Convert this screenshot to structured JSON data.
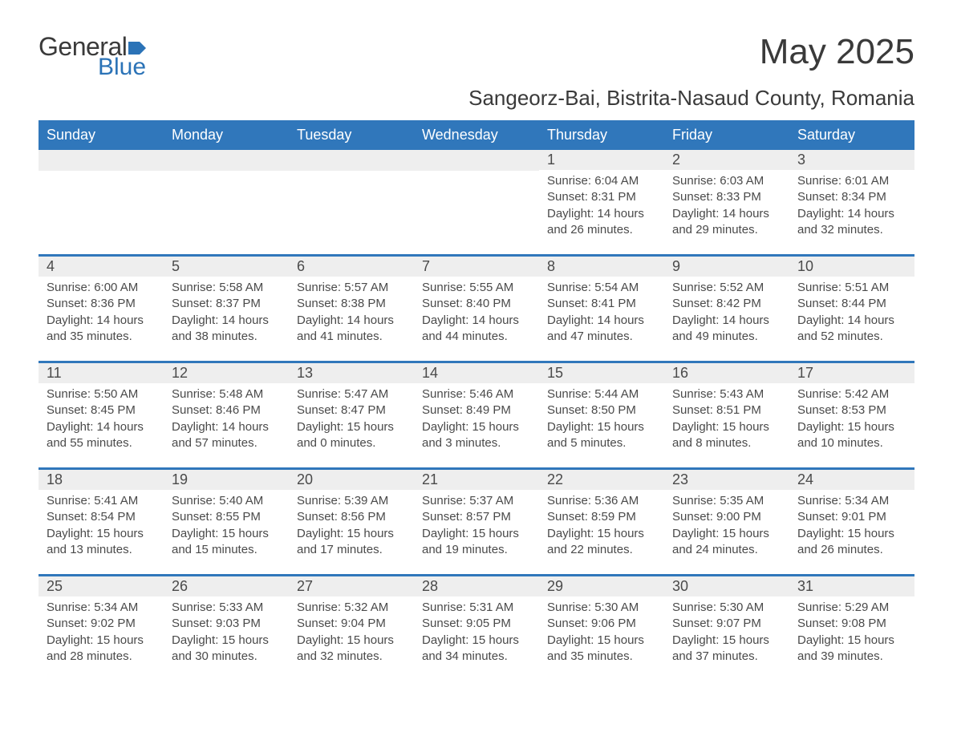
{
  "logo": {
    "text_general": "General",
    "text_blue": "Blue"
  },
  "title": "May 2025",
  "location": "Sangeorz-Bai, Bistrita-Nasaud County, Romania",
  "colors": {
    "header_bg": "#3077bb",
    "header_text": "#ffffff",
    "week_border": "#3077bb",
    "daynum_bg": "#eeeeee",
    "body_text": "#4a4a4a",
    "logo_blue": "#2b73b7",
    "background": "#ffffff"
  },
  "typography": {
    "title_fontsize": 44,
    "location_fontsize": 26,
    "header_fontsize": 18,
    "daynum_fontsize": 18,
    "cell_fontsize": 15
  },
  "day_names": [
    "Sunday",
    "Monday",
    "Tuesday",
    "Wednesday",
    "Thursday",
    "Friday",
    "Saturday"
  ],
  "weeks": [
    [
      null,
      null,
      null,
      null,
      {
        "n": "1",
        "sr": "Sunrise: 6:04 AM",
        "ss": "Sunset: 8:31 PM",
        "d1": "Daylight: 14 hours",
        "d2": "and 26 minutes."
      },
      {
        "n": "2",
        "sr": "Sunrise: 6:03 AM",
        "ss": "Sunset: 8:33 PM",
        "d1": "Daylight: 14 hours",
        "d2": "and 29 minutes."
      },
      {
        "n": "3",
        "sr": "Sunrise: 6:01 AM",
        "ss": "Sunset: 8:34 PM",
        "d1": "Daylight: 14 hours",
        "d2": "and 32 minutes."
      }
    ],
    [
      {
        "n": "4",
        "sr": "Sunrise: 6:00 AM",
        "ss": "Sunset: 8:36 PM",
        "d1": "Daylight: 14 hours",
        "d2": "and 35 minutes."
      },
      {
        "n": "5",
        "sr": "Sunrise: 5:58 AM",
        "ss": "Sunset: 8:37 PM",
        "d1": "Daylight: 14 hours",
        "d2": "and 38 minutes."
      },
      {
        "n": "6",
        "sr": "Sunrise: 5:57 AM",
        "ss": "Sunset: 8:38 PM",
        "d1": "Daylight: 14 hours",
        "d2": "and 41 minutes."
      },
      {
        "n": "7",
        "sr": "Sunrise: 5:55 AM",
        "ss": "Sunset: 8:40 PM",
        "d1": "Daylight: 14 hours",
        "d2": "and 44 minutes."
      },
      {
        "n": "8",
        "sr": "Sunrise: 5:54 AM",
        "ss": "Sunset: 8:41 PM",
        "d1": "Daylight: 14 hours",
        "d2": "and 47 minutes."
      },
      {
        "n": "9",
        "sr": "Sunrise: 5:52 AM",
        "ss": "Sunset: 8:42 PM",
        "d1": "Daylight: 14 hours",
        "d2": "and 49 minutes."
      },
      {
        "n": "10",
        "sr": "Sunrise: 5:51 AM",
        "ss": "Sunset: 8:44 PM",
        "d1": "Daylight: 14 hours",
        "d2": "and 52 minutes."
      }
    ],
    [
      {
        "n": "11",
        "sr": "Sunrise: 5:50 AM",
        "ss": "Sunset: 8:45 PM",
        "d1": "Daylight: 14 hours",
        "d2": "and 55 minutes."
      },
      {
        "n": "12",
        "sr": "Sunrise: 5:48 AM",
        "ss": "Sunset: 8:46 PM",
        "d1": "Daylight: 14 hours",
        "d2": "and 57 minutes."
      },
      {
        "n": "13",
        "sr": "Sunrise: 5:47 AM",
        "ss": "Sunset: 8:47 PM",
        "d1": "Daylight: 15 hours",
        "d2": "and 0 minutes."
      },
      {
        "n": "14",
        "sr": "Sunrise: 5:46 AM",
        "ss": "Sunset: 8:49 PM",
        "d1": "Daylight: 15 hours",
        "d2": "and 3 minutes."
      },
      {
        "n": "15",
        "sr": "Sunrise: 5:44 AM",
        "ss": "Sunset: 8:50 PM",
        "d1": "Daylight: 15 hours",
        "d2": "and 5 minutes."
      },
      {
        "n": "16",
        "sr": "Sunrise: 5:43 AM",
        "ss": "Sunset: 8:51 PM",
        "d1": "Daylight: 15 hours",
        "d2": "and 8 minutes."
      },
      {
        "n": "17",
        "sr": "Sunrise: 5:42 AM",
        "ss": "Sunset: 8:53 PM",
        "d1": "Daylight: 15 hours",
        "d2": "and 10 minutes."
      }
    ],
    [
      {
        "n": "18",
        "sr": "Sunrise: 5:41 AM",
        "ss": "Sunset: 8:54 PM",
        "d1": "Daylight: 15 hours",
        "d2": "and 13 minutes."
      },
      {
        "n": "19",
        "sr": "Sunrise: 5:40 AM",
        "ss": "Sunset: 8:55 PM",
        "d1": "Daylight: 15 hours",
        "d2": "and 15 minutes."
      },
      {
        "n": "20",
        "sr": "Sunrise: 5:39 AM",
        "ss": "Sunset: 8:56 PM",
        "d1": "Daylight: 15 hours",
        "d2": "and 17 minutes."
      },
      {
        "n": "21",
        "sr": "Sunrise: 5:37 AM",
        "ss": "Sunset: 8:57 PM",
        "d1": "Daylight: 15 hours",
        "d2": "and 19 minutes."
      },
      {
        "n": "22",
        "sr": "Sunrise: 5:36 AM",
        "ss": "Sunset: 8:59 PM",
        "d1": "Daylight: 15 hours",
        "d2": "and 22 minutes."
      },
      {
        "n": "23",
        "sr": "Sunrise: 5:35 AM",
        "ss": "Sunset: 9:00 PM",
        "d1": "Daylight: 15 hours",
        "d2": "and 24 minutes."
      },
      {
        "n": "24",
        "sr": "Sunrise: 5:34 AM",
        "ss": "Sunset: 9:01 PM",
        "d1": "Daylight: 15 hours",
        "d2": "and 26 minutes."
      }
    ],
    [
      {
        "n": "25",
        "sr": "Sunrise: 5:34 AM",
        "ss": "Sunset: 9:02 PM",
        "d1": "Daylight: 15 hours",
        "d2": "and 28 minutes."
      },
      {
        "n": "26",
        "sr": "Sunrise: 5:33 AM",
        "ss": "Sunset: 9:03 PM",
        "d1": "Daylight: 15 hours",
        "d2": "and 30 minutes."
      },
      {
        "n": "27",
        "sr": "Sunrise: 5:32 AM",
        "ss": "Sunset: 9:04 PM",
        "d1": "Daylight: 15 hours",
        "d2": "and 32 minutes."
      },
      {
        "n": "28",
        "sr": "Sunrise: 5:31 AM",
        "ss": "Sunset: 9:05 PM",
        "d1": "Daylight: 15 hours",
        "d2": "and 34 minutes."
      },
      {
        "n": "29",
        "sr": "Sunrise: 5:30 AM",
        "ss": "Sunset: 9:06 PM",
        "d1": "Daylight: 15 hours",
        "d2": "and 35 minutes."
      },
      {
        "n": "30",
        "sr": "Sunrise: 5:30 AM",
        "ss": "Sunset: 9:07 PM",
        "d1": "Daylight: 15 hours",
        "d2": "and 37 minutes."
      },
      {
        "n": "31",
        "sr": "Sunrise: 5:29 AM",
        "ss": "Sunset: 9:08 PM",
        "d1": "Daylight: 15 hours",
        "d2": "and 39 minutes."
      }
    ]
  ]
}
